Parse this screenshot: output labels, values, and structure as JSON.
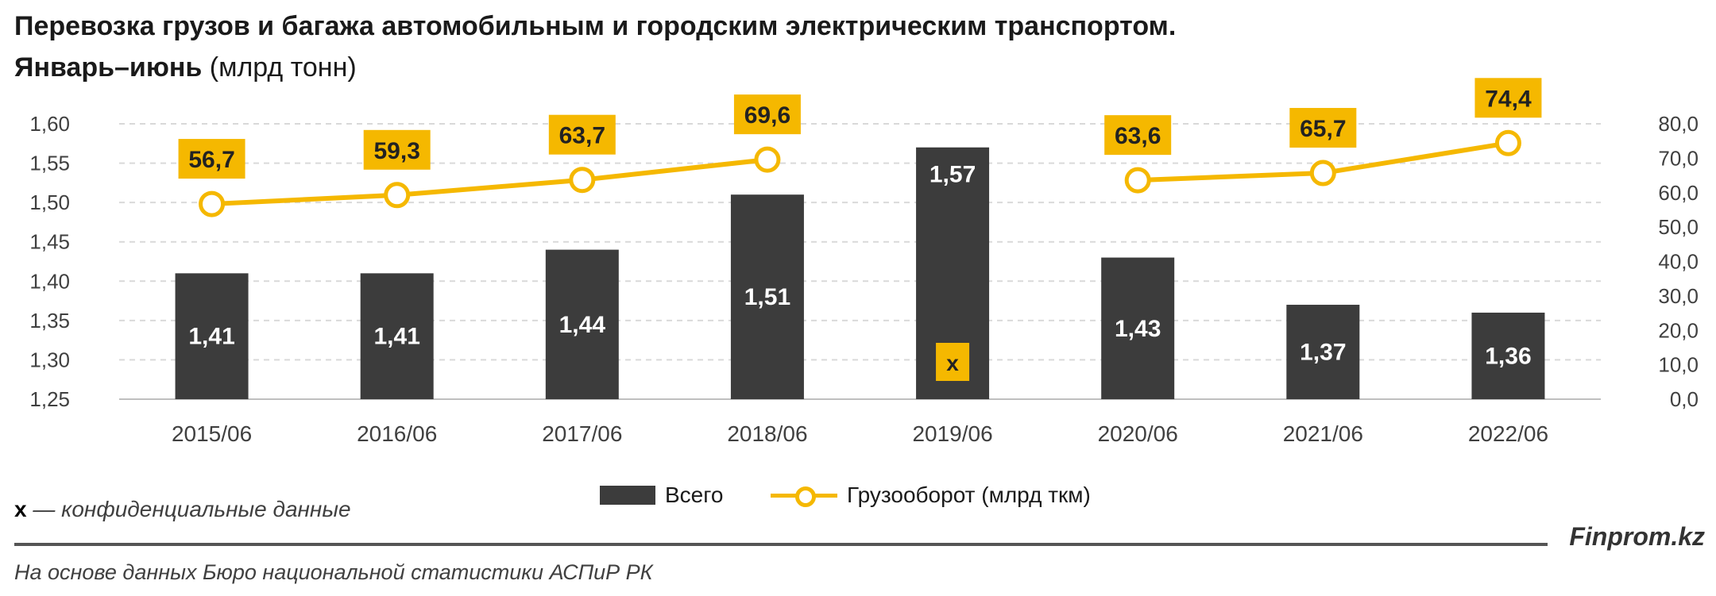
{
  "title": "Перевозка грузов и багажа автомобильным и городским электрическим транспортом.",
  "subtitle_bold": "Январь–июнь",
  "subtitle_rest": " (млрд тонн)",
  "note_mark": "x",
  "note_text": " — конфиденциальные данные",
  "brand": "Finprom.kz",
  "source": "На основе данных Бюро национальной статистики АСПиР РК",
  "colors": {
    "bar": "#3c3c3c",
    "line": "#f5b800",
    "label_bg": "#f5b800",
    "grid": "#d9d9d9"
  },
  "chart_data": {
    "type": "bar",
    "categories": [
      "2015/06",
      "2016/06",
      "2017/06",
      "2018/06",
      "2019/06",
      "2020/06",
      "2021/06",
      "2022/06"
    ],
    "y_left_ticks": [
      "1,60",
      "1,55",
      "1,50",
      "1,45",
      "1,40",
      "1,35",
      "1,30",
      "1,25"
    ],
    "y_right_ticks": [
      "80,0",
      "70,0",
      "60,0",
      "50,0",
      "40,0",
      "30,0",
      "20,0",
      "10,0",
      "0,0"
    ],
    "ylim_left": [
      1.25,
      1.6
    ],
    "ylim_right": [
      0,
      80
    ],
    "grid": true,
    "legend_position": "bottom",
    "series": [
      {
        "name": "Всего",
        "type": "bar",
        "axis": "left",
        "values": [
          1.41,
          1.41,
          1.44,
          1.51,
          1.57,
          1.43,
          1.37,
          1.36
        ],
        "labels": [
          "1,41",
          "1,41",
          "1,44",
          "1,51",
          "1,57",
          "1,43",
          "1,37",
          "1,36"
        ],
        "confidential_marks": [
          "",
          "",
          "",
          "",
          "x",
          "",
          "",
          ""
        ]
      },
      {
        "name": "Грузооборот (млрд ткм)",
        "type": "line",
        "axis": "right",
        "values": [
          56.7,
          59.3,
          63.7,
          69.6,
          null,
          63.6,
          65.7,
          74.4
        ],
        "labels": [
          "56,7",
          "59,3",
          "63,7",
          "69,6",
          "",
          "63,6",
          "65,7",
          "74,4"
        ]
      }
    ]
  }
}
